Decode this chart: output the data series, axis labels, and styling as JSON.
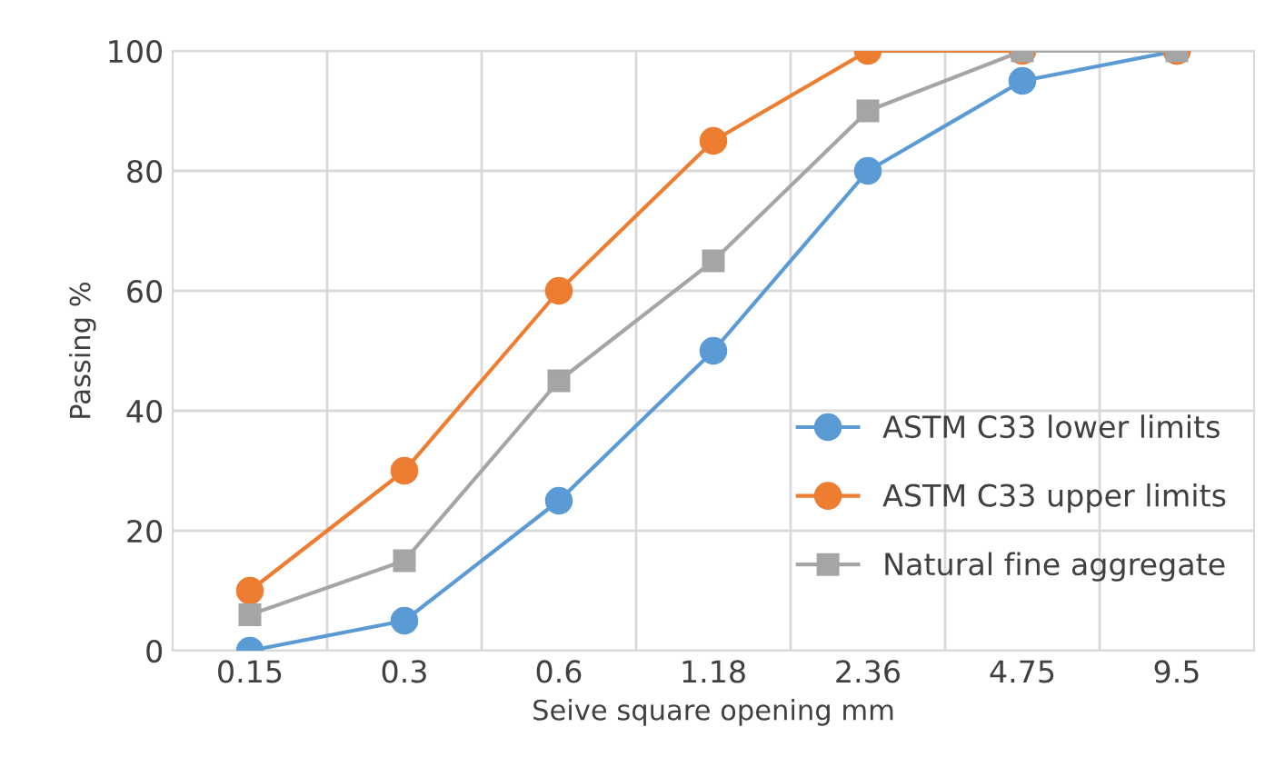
{
  "chart_data": {
    "type": "line",
    "xlabel": "Seive square opening mm",
    "ylabel": "Passing %",
    "categories": [
      "0.15",
      "0.3",
      "0.6",
      "1.18",
      "2.36",
      "4.75",
      "9.5"
    ],
    "series": [
      {
        "name": "ASTM C33 lower limits",
        "color": "#5b9bd5",
        "marker": "circle",
        "values": [
          0,
          5,
          25,
          50,
          80,
          95,
          100
        ]
      },
      {
        "name": "ASTM C33 upper limits",
        "color": "#ed7d31",
        "marker": "circle",
        "values": [
          10,
          30,
          60,
          85,
          100,
          100,
          100
        ]
      },
      {
        "name": "Natural fine aggregate",
        "color": "#a5a5a5",
        "marker": "square",
        "values": [
          6,
          15,
          45,
          65,
          90,
          100,
          100
        ]
      }
    ],
    "ylim": [
      0,
      100
    ],
    "yticks": [
      0,
      20,
      40,
      60,
      80,
      100
    ],
    "grid": true,
    "legend": "bottom right",
    "line_style": "solid"
  }
}
